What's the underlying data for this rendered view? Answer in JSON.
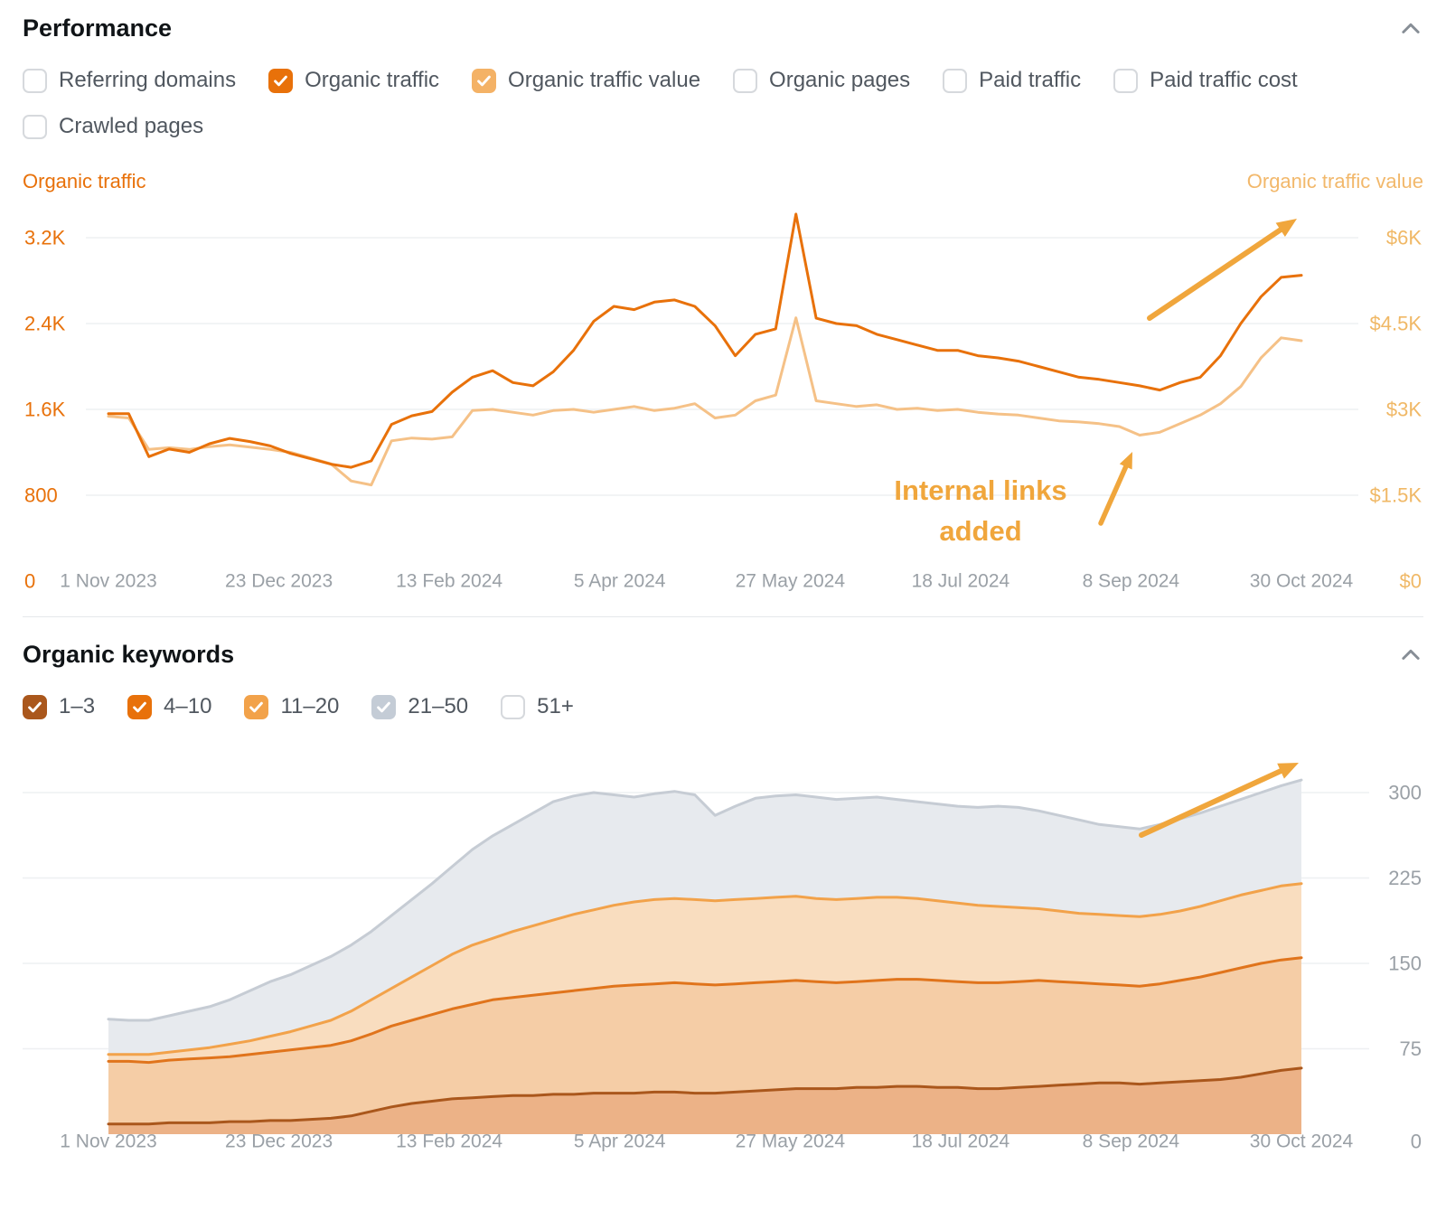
{
  "performance": {
    "title": "Performance",
    "left_axis_title": "Organic traffic",
    "right_axis_title": "Organic traffic value",
    "legend_rows": [
      [
        {
          "label": "Referring domains",
          "checked": false
        },
        {
          "label": "Organic traffic",
          "checked": true,
          "color": "#e8710a"
        },
        {
          "label": "Organic traffic value",
          "checked": true,
          "color": "#f4b266"
        },
        {
          "label": "Organic pages",
          "checked": false
        },
        {
          "label": "Paid traffic",
          "checked": false
        },
        {
          "label": "Paid traffic cost",
          "checked": false
        }
      ],
      [
        {
          "label": "Crawled pages",
          "checked": false
        }
      ]
    ]
  },
  "keywords": {
    "title": "Organic keywords",
    "legend_rows": [
      [
        {
          "label": "1–3",
          "checked": true,
          "color": "#aa571c"
        },
        {
          "label": "4–10",
          "checked": true,
          "color": "#e8710a"
        },
        {
          "label": "11–20",
          "checked": true,
          "color": "#f2a24a"
        },
        {
          "label": "21–50",
          "checked": true,
          "color": "#c4ccd6"
        },
        {
          "label": "51+",
          "checked": false
        }
      ]
    ]
  },
  "chart_data": [
    {
      "type": "line",
      "title": "Performance",
      "x_labels": [
        "1 Nov 2023",
        "23 Dec 2023",
        "13 Feb 2024",
        "5 Apr 2024",
        "27 May 2024",
        "18 Jul 2024",
        "8 Sep 2024",
        "30 Oct 2024"
      ],
      "left_axis": {
        "title": "Organic traffic",
        "tick_labels": [
          "3.2K",
          "2.4K",
          "1.6K",
          "800",
          "0"
        ],
        "tick_values": [
          3200,
          2400,
          1600,
          800,
          0
        ]
      },
      "right_axis": {
        "title": "Organic traffic value",
        "tick_labels": [
          "$6K",
          "$4.5K",
          "$3K",
          "$1.5K",
          "$0"
        ],
        "tick_values": [
          6000,
          4500,
          3000,
          1500,
          0
        ]
      },
      "annotation": [
        "Internal links",
        "added"
      ],
      "annotation_color": "#f0a63c",
      "series": [
        {
          "name": "Organic traffic",
          "axis": "left",
          "color": "#e8710a",
          "values": [
            1560,
            1560,
            1160,
            1230,
            1200,
            1280,
            1330,
            1300,
            1260,
            1190,
            1140,
            1090,
            1060,
            1120,
            1460,
            1540,
            1580,
            1760,
            1900,
            1960,
            1850,
            1820,
            1950,
            2150,
            2420,
            2560,
            2530,
            2600,
            2620,
            2560,
            2380,
            2100,
            2300,
            2350,
            3420,
            2450,
            2400,
            2380,
            2300,
            2250,
            2200,
            2150,
            2150,
            2100,
            2080,
            2050,
            2000,
            1950,
            1900,
            1880,
            1850,
            1820,
            1780,
            1850,
            1900,
            2100,
            2400,
            2650,
            2830,
            2850
          ]
        },
        {
          "name": "Organic traffic value",
          "axis": "right",
          "color": "#f5c187",
          "values": [
            2880,
            2850,
            2300,
            2330,
            2300,
            2350,
            2380,
            2340,
            2300,
            2250,
            2150,
            2050,
            1750,
            1680,
            2450,
            2500,
            2480,
            2520,
            2980,
            3000,
            2950,
            2900,
            2980,
            3000,
            2950,
            3000,
            3050,
            2980,
            3020,
            3100,
            2850,
            2900,
            3150,
            3250,
            4600,
            3150,
            3100,
            3050,
            3080,
            3000,
            3020,
            2980,
            3000,
            2950,
            2920,
            2900,
            2850,
            2800,
            2780,
            2750,
            2700,
            2550,
            2600,
            2750,
            2900,
            3100,
            3400,
            3900,
            4250,
            4200
          ]
        }
      ]
    },
    {
      "type": "stacked-area",
      "title": "Organic keywords",
      "x_labels": [
        "1 Nov 2023",
        "23 Dec 2023",
        "13 Feb 2024",
        "5 Apr 2024",
        "27 May 2024",
        "18 Jul 2024",
        "8 Sep 2024",
        "30 Oct 2024"
      ],
      "right_axis": {
        "tick_labels": [
          "300",
          "225",
          "150",
          "75",
          "0"
        ],
        "tick_values": [
          300,
          225,
          150,
          75,
          0
        ]
      },
      "bands": [
        {
          "name": "1–3",
          "stroke": "#aa571c",
          "fill": "#ecb287",
          "cumulative": [
            9,
            9,
            9,
            10,
            10,
            10,
            11,
            11,
            12,
            12,
            13,
            14,
            16,
            20,
            24,
            27,
            29,
            31,
            32,
            33,
            34,
            34,
            35,
            35,
            36,
            36,
            36,
            37,
            37,
            36,
            36,
            37,
            38,
            39,
            40,
            40,
            40,
            41,
            41,
            42,
            42,
            41,
            41,
            40,
            40,
            41,
            42,
            43,
            44,
            45,
            45,
            44,
            45,
            46,
            47,
            48,
            50,
            53,
            56,
            58
          ]
        },
        {
          "name": "4–10",
          "stroke": "#e0741c",
          "fill": "#f5cda6",
          "cumulative": [
            64,
            64,
            63,
            65,
            66,
            67,
            68,
            70,
            72,
            74,
            76,
            78,
            82,
            88,
            95,
            100,
            105,
            110,
            114,
            118,
            120,
            122,
            124,
            126,
            128,
            130,
            131,
            132,
            133,
            132,
            131,
            132,
            133,
            134,
            135,
            134,
            133,
            134,
            135,
            136,
            136,
            135,
            134,
            133,
            133,
            134,
            135,
            134,
            133,
            132,
            131,
            130,
            132,
            135,
            138,
            142,
            146,
            150,
            153,
            155
          ]
        },
        {
          "name": "11–20",
          "stroke": "#f2a24a",
          "fill": "#f9ddbf",
          "cumulative": [
            70,
            70,
            70,
            72,
            74,
            76,
            79,
            82,
            86,
            90,
            95,
            100,
            108,
            118,
            128,
            138,
            148,
            158,
            166,
            172,
            178,
            183,
            188,
            193,
            197,
            201,
            204,
            206,
            207,
            206,
            205,
            206,
            207,
            208,
            209,
            207,
            206,
            207,
            208,
            208,
            207,
            205,
            203,
            201,
            200,
            199,
            198,
            196,
            194,
            193,
            192,
            191,
            193,
            196,
            200,
            205,
            210,
            214,
            218,
            220
          ]
        },
        {
          "name": "21–50",
          "stroke": "#c6ccd4",
          "fill": "#e7eaee",
          "cumulative": [
            101,
            100,
            100,
            104,
            108,
            112,
            118,
            126,
            134,
            140,
            148,
            156,
            166,
            178,
            192,
            206,
            220,
            235,
            250,
            262,
            272,
            282,
            292,
            297,
            300,
            298,
            296,
            299,
            301,
            298,
            280,
            288,
            295,
            297,
            298,
            296,
            294,
            295,
            296,
            294,
            292,
            290,
            288,
            287,
            288,
            287,
            284,
            280,
            276,
            272,
            270,
            268,
            272,
            277,
            282,
            288,
            294,
            300,
            306,
            311
          ]
        }
      ]
    }
  ]
}
